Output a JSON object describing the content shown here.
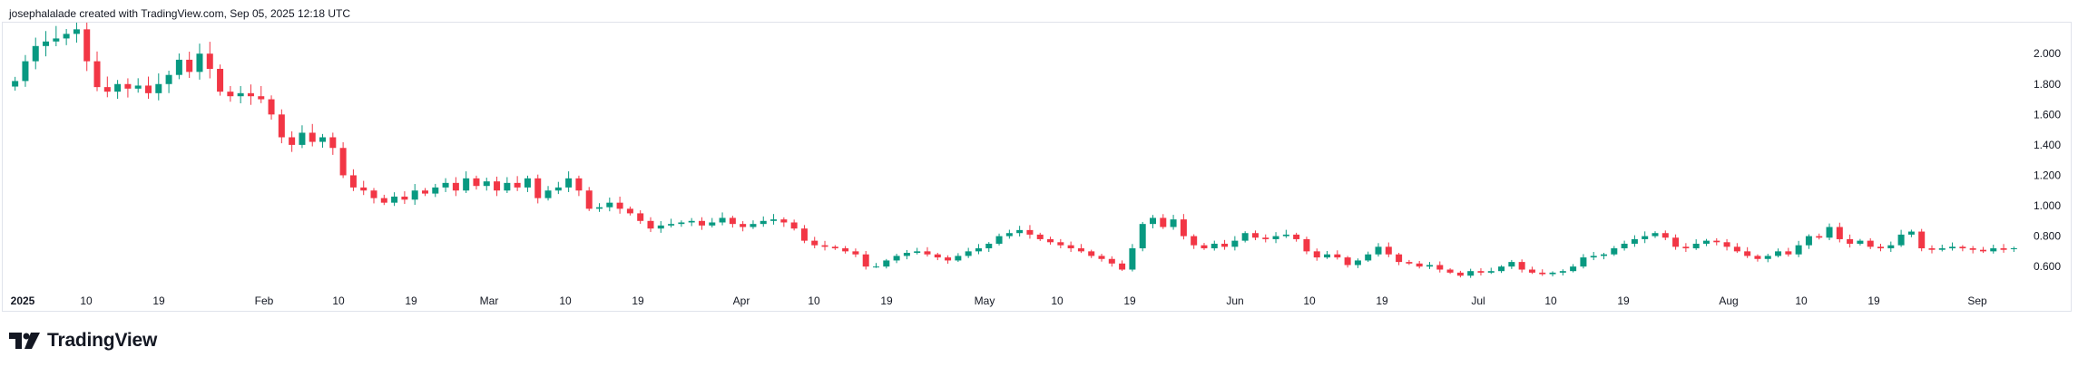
{
  "header": {
    "caption": "josephalalade created with TradingView.com, Sep 05, 2025 12:18 UTC"
  },
  "brand": {
    "name": "TradingView",
    "logo_icon": "tradingview-logo-icon"
  },
  "colors": {
    "up": "#089981",
    "down": "#f23645",
    "axis_text": "#131722",
    "border": "#e0e3eb"
  },
  "chart_data": {
    "type": "candlestick",
    "title": "",
    "ylim": [
      0.44,
      2.18
    ],
    "yticks": [
      "2.000",
      "1.800",
      "1.600",
      "1.400",
      "1.200",
      "1.000",
      "0.800",
      "0.600"
    ],
    "xticks": [
      "2025",
      "10",
      "19",
      "Feb",
      "10",
      "19",
      "Mar",
      "10",
      "19",
      "Apr",
      "10",
      "19",
      "May",
      "10",
      "19",
      "Jun",
      "10",
      "19",
      "Jul",
      "10",
      "19",
      "Aug",
      "10",
      "19",
      "Sep"
    ],
    "x_start": "2025-01-01",
    "x_end": "2025-09-05",
    "candles_close": [
      1.82,
      1.95,
      2.05,
      2.08,
      2.1,
      2.13,
      2.16,
      1.95,
      1.78,
      1.75,
      1.8,
      1.77,
      1.79,
      1.74,
      1.8,
      1.86,
      1.96,
      1.88,
      2.0,
      1.9,
      1.75,
      1.72,
      1.74,
      1.72,
      1.7,
      1.6,
      1.45,
      1.4,
      1.48,
      1.42,
      1.45,
      1.38,
      1.2,
      1.12,
      1.1,
      1.05,
      1.02,
      1.06,
      1.04,
      1.1,
      1.08,
      1.12,
      1.15,
      1.1,
      1.18,
      1.13,
      1.16,
      1.1,
      1.15,
      1.12,
      1.18,
      1.05,
      1.1,
      1.12,
      1.18,
      1.1,
      0.98,
      0.99,
      1.02,
      0.98,
      0.95,
      0.9,
      0.85,
      0.87,
      0.88,
      0.89,
      0.9,
      0.87,
      0.89,
      0.92,
      0.88,
      0.86,
      0.88,
      0.9,
      0.91,
      0.89,
      0.85,
      0.77,
      0.74,
      0.73,
      0.72,
      0.7,
      0.68,
      0.6,
      0.6,
      0.64,
      0.67,
      0.69,
      0.7,
      0.68,
      0.66,
      0.64,
      0.67,
      0.7,
      0.72,
      0.75,
      0.8,
      0.82,
      0.84,
      0.81,
      0.78,
      0.76,
      0.74,
      0.72,
      0.7,
      0.67,
      0.65,
      0.62,
      0.58,
      0.72,
      0.88,
      0.92,
      0.86,
      0.91,
      0.8,
      0.74,
      0.72,
      0.75,
      0.73,
      0.77,
      0.82,
      0.79,
      0.78,
      0.8,
      0.81,
      0.78,
      0.7,
      0.66,
      0.68,
      0.66,
      0.61,
      0.64,
      0.68,
      0.73,
      0.68,
      0.63,
      0.62,
      0.6,
      0.61,
      0.58,
      0.56,
      0.54,
      0.57,
      0.56,
      0.57,
      0.6,
      0.63,
      0.58,
      0.56,
      0.55,
      0.56,
      0.57,
      0.6,
      0.66,
      0.67,
      0.68,
      0.72,
      0.75,
      0.78,
      0.8,
      0.82,
      0.79,
      0.73,
      0.72,
      0.75,
      0.77,
      0.76,
      0.73,
      0.7,
      0.67,
      0.65,
      0.67,
      0.7,
      0.68,
      0.74,
      0.8,
      0.79,
      0.86,
      0.78,
      0.75,
      0.77,
      0.73,
      0.72,
      0.74,
      0.81,
      0.83,
      0.72,
      0.71,
      0.72,
      0.73,
      0.72,
      0.71,
      0.7,
      0.72,
      0.71,
      0.72
    ],
    "last_open": 0.72
  }
}
